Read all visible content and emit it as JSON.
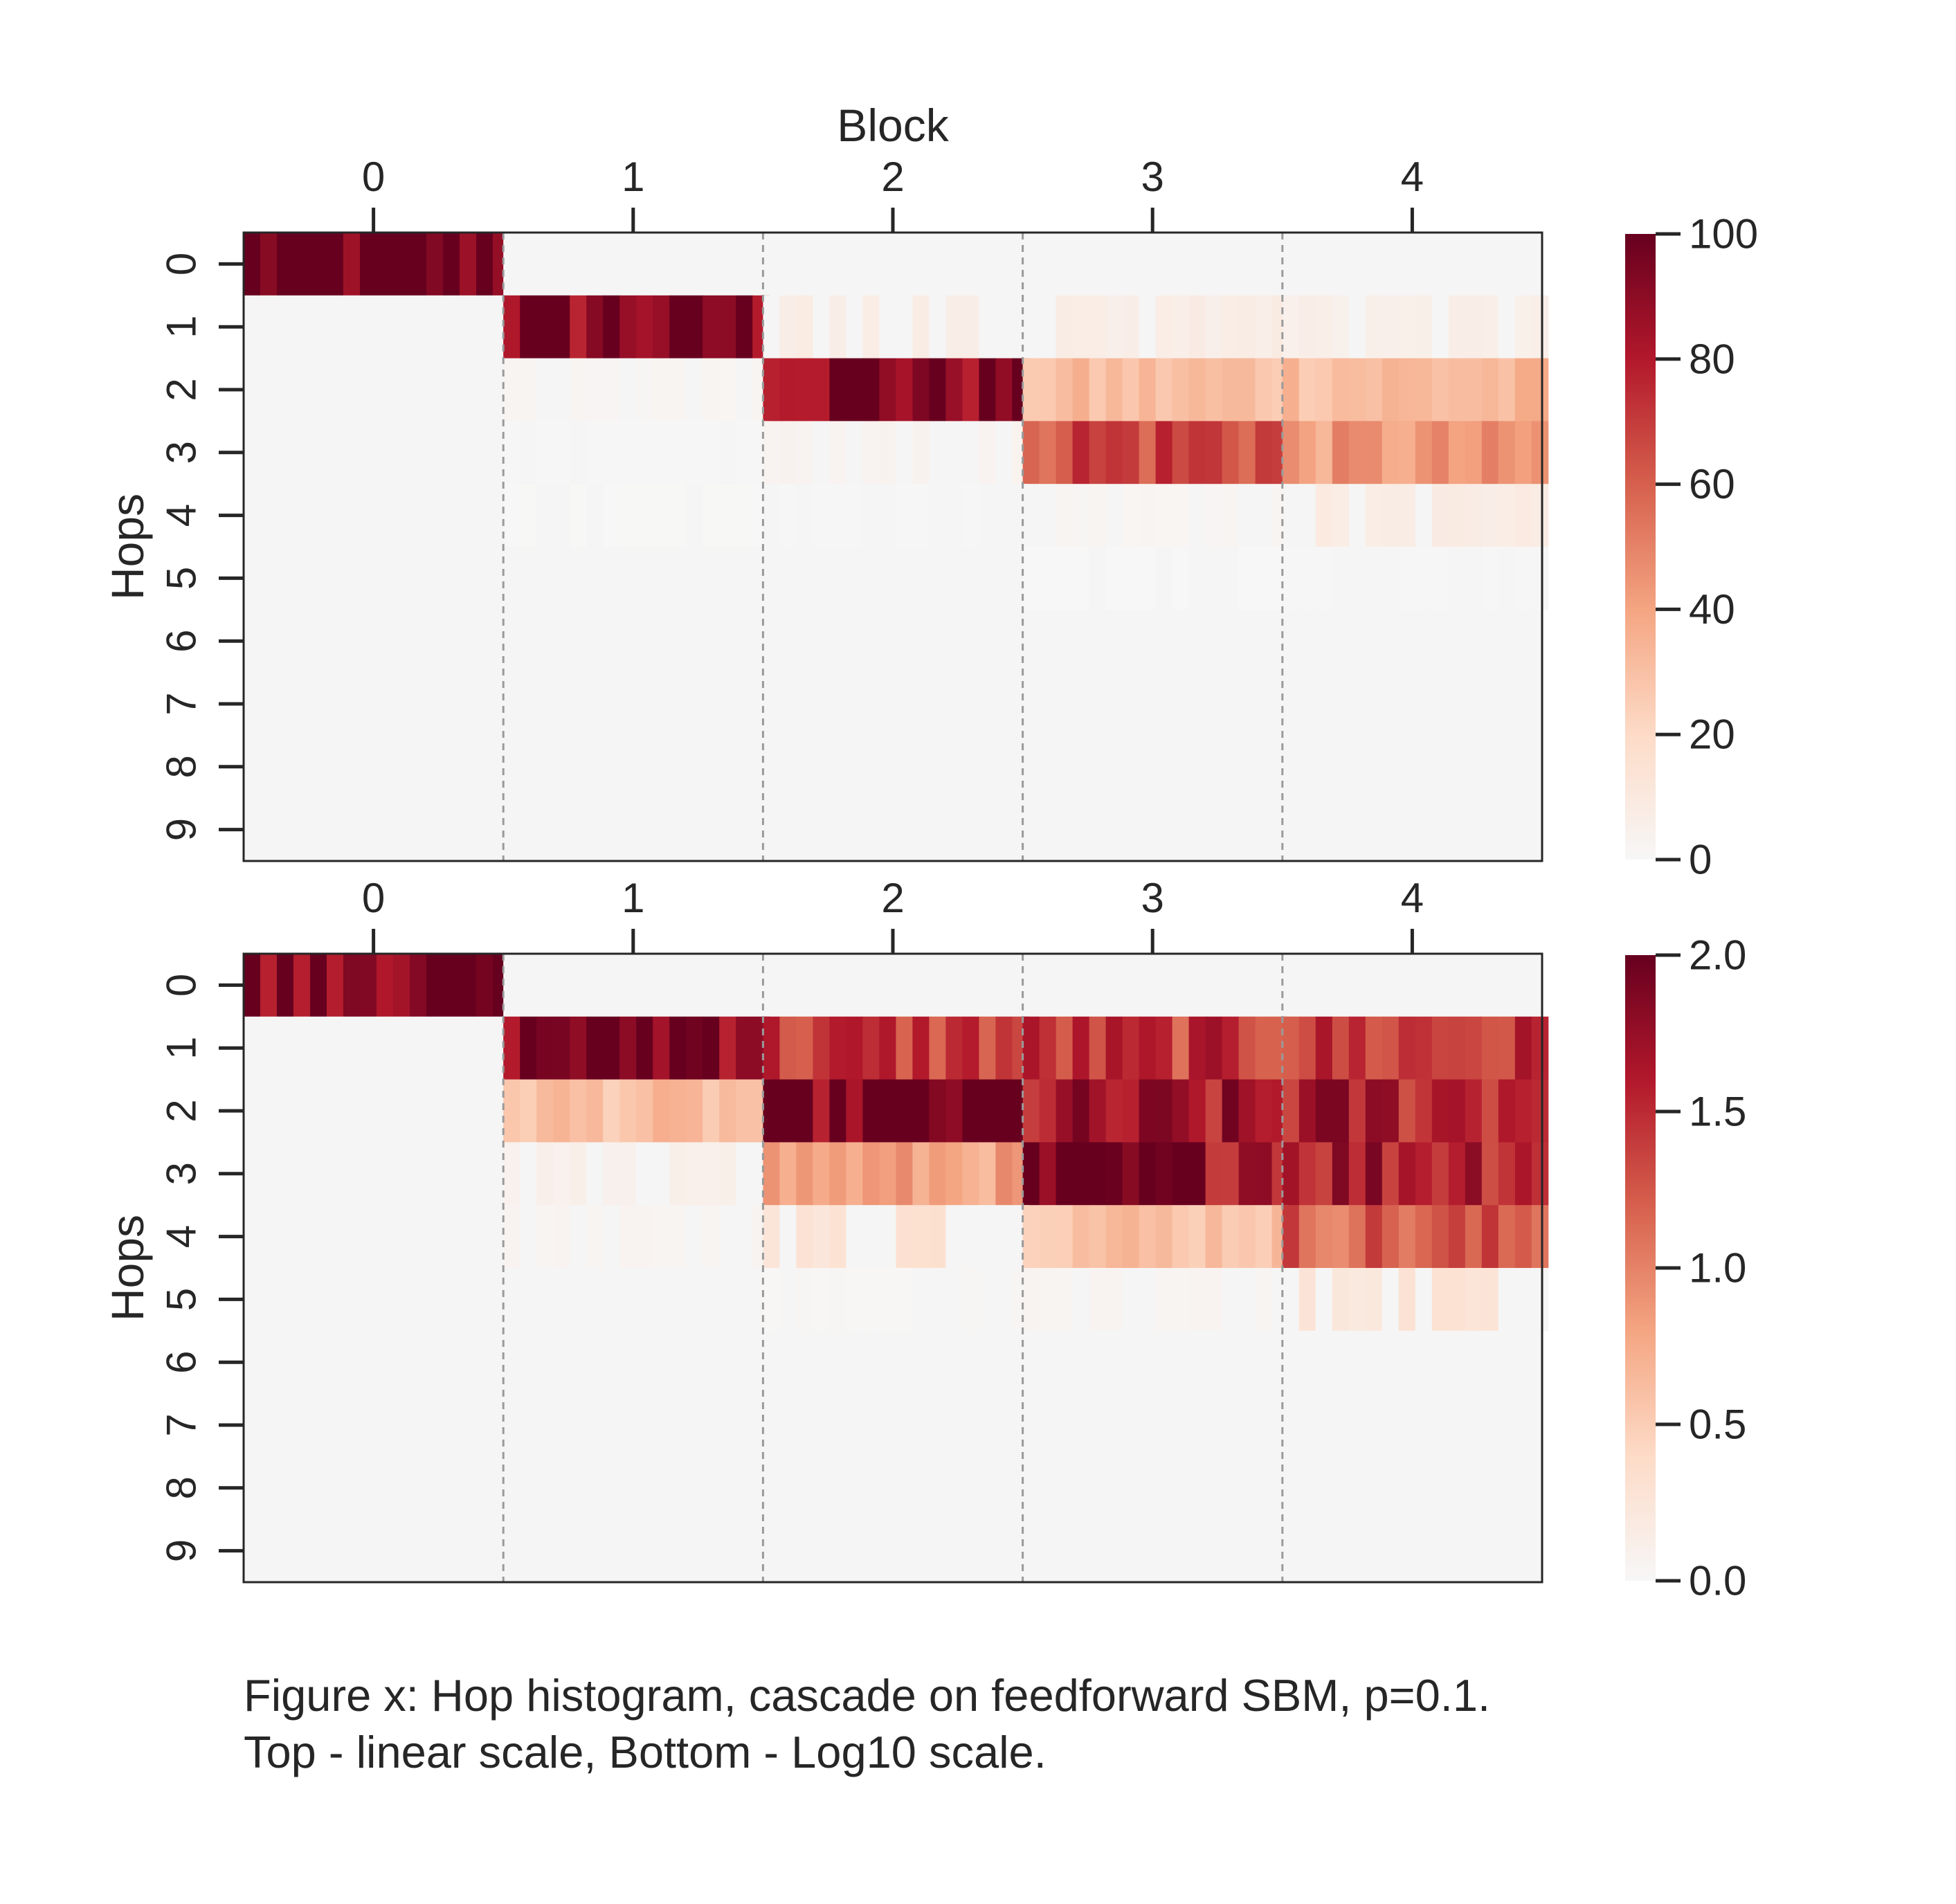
{
  "chart_data": [
    {
      "type": "heatmap",
      "panel": "top",
      "title": "",
      "xlabel": "Block",
      "ylabel": "Hops",
      "x_ticks": [
        "0",
        "1",
        "2",
        "3",
        "4"
      ],
      "y_ticks": [
        "0",
        "1",
        "2",
        "3",
        "4",
        "5",
        "6",
        "7",
        "8",
        "9"
      ],
      "scale": "linear",
      "colormap": "RdBu_r (upper half: light gray to dark red)",
      "colorbar": {
        "min": 0,
        "max": 100,
        "ticks": [
          "0",
          "20",
          "40",
          "60",
          "80",
          "100"
        ]
      },
      "block_boundaries": "dashed gray vertical lines between blocks",
      "mean_values_by_hop_row": [
        [
          100,
          0,
          0,
          0,
          0
        ],
        [
          0,
          93,
          7,
          7,
          6
        ],
        [
          0,
          2,
          95,
          30,
          32
        ],
        [
          0,
          0.5,
          3,
          68,
          42
        ],
        [
          0,
          0.2,
          0.5,
          2,
          8
        ],
        [
          0,
          0,
          0,
          0.1,
          0.5
        ],
        [
          0,
          0,
          0,
          0,
          0
        ],
        [
          0,
          0,
          0,
          0,
          0
        ],
        [
          0,
          0,
          0,
          0,
          0
        ],
        [
          0,
          0,
          0,
          0,
          0
        ]
      ]
    },
    {
      "type": "heatmap",
      "panel": "bottom",
      "title": "",
      "xlabel": "",
      "ylabel": "Hops",
      "x_ticks": [
        "0",
        "1",
        "2",
        "3",
        "4"
      ],
      "y_ticks": [
        "0",
        "1",
        "2",
        "3",
        "4",
        "5",
        "6",
        "7",
        "8",
        "9"
      ],
      "scale": "log10",
      "colormap": "RdBu_r (upper half: light gray to dark red)",
      "colorbar": {
        "min": 0.0,
        "max": 2.0,
        "ticks": [
          "0.0",
          "0.5",
          "1.0",
          "1.5",
          "2.0"
        ]
      },
      "block_boundaries": "dashed gray vertical lines between blocks",
      "mean_values_by_hop_row": [
        [
          2.0,
          0,
          0,
          0,
          0
        ],
        [
          0,
          1.96,
          1.4,
          1.4,
          1.4
        ],
        [
          0,
          0.6,
          1.98,
          1.6,
          1.6
        ],
        [
          0,
          0.1,
          0.8,
          1.8,
          1.65
        ],
        [
          0,
          0.05,
          0.3,
          0.6,
          1.2
        ],
        [
          0,
          0,
          0.02,
          0.05,
          0.25
        ],
        [
          0,
          0,
          0,
          0,
          0
        ],
        [
          0,
          0,
          0,
          0,
          0
        ],
        [
          0,
          0,
          0,
          0,
          0
        ],
        [
          0,
          0,
          0,
          0,
          0
        ]
      ]
    }
  ],
  "caption": {
    "line1": "Figure x: Hop histogram, cascade on feedforward SBM, p=0.1.",
    "line2": "Top - linear scale, Bottom - Log10 scale."
  },
  "colors": {
    "background_cell": "#f5f5f5",
    "dark_red": "#67001f",
    "divider": "#9a9a9a",
    "axis": "#262626"
  }
}
